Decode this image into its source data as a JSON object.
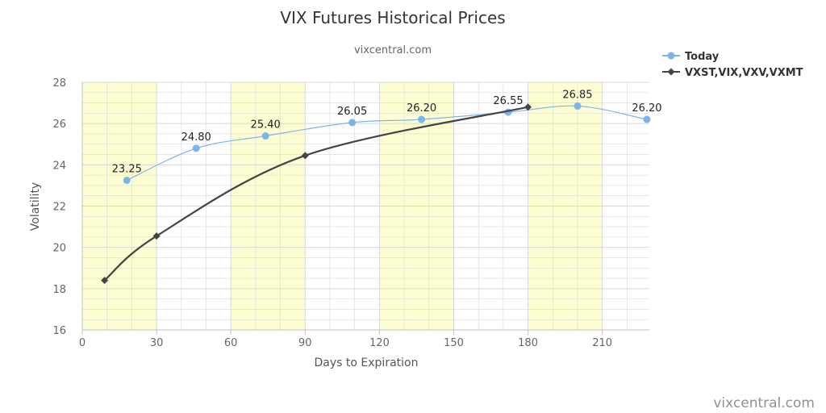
{
  "chart_data": {
    "type": "line",
    "title": "VIX Futures Historical Prices",
    "subtitle": "vixcentral.com",
    "xlabel": "Days to Expiration",
    "ylabel": "Volatility",
    "xlim": [
      0,
      229
    ],
    "ylim": [
      16,
      28
    ],
    "xticks": [
      0,
      30,
      60,
      90,
      120,
      150,
      180,
      210
    ],
    "yticks": [
      16,
      18,
      20,
      22,
      24,
      26,
      28
    ],
    "shaded_bands": [
      [
        0,
        30
      ],
      [
        60,
        90
      ],
      [
        120,
        150
      ],
      [
        180,
        210
      ]
    ],
    "grid": true,
    "legend_position": "top-right",
    "series": [
      {
        "name": "Today",
        "color": "#7cb5ec",
        "marker": "circle",
        "smooth": true,
        "show_labels": true,
        "points": [
          {
            "x": 18,
            "y": 23.25,
            "label": "23.25"
          },
          {
            "x": 46,
            "y": 24.8,
            "label": "24.80"
          },
          {
            "x": 74,
            "y": 25.4,
            "label": "25.40"
          },
          {
            "x": 109,
            "y": 26.05,
            "label": "26.05"
          },
          {
            "x": 137,
            "y": 26.2,
            "label": "26.20"
          },
          {
            "x": 172,
            "y": 26.55,
            "label": "26.55"
          },
          {
            "x": 200,
            "y": 26.85,
            "label": "26.85"
          },
          {
            "x": 228,
            "y": 26.2,
            "label": "26.20"
          }
        ]
      },
      {
        "name": "VXST,VIX,VXV,VXMT",
        "color": "#434348",
        "marker": "diamond",
        "smooth": true,
        "show_labels": false,
        "points": [
          {
            "x": 9,
            "y": 18.4
          },
          {
            "x": 30,
            "y": 20.55
          },
          {
            "x": 90,
            "y": 24.45
          },
          {
            "x": 180,
            "y": 26.8
          }
        ]
      }
    ]
  },
  "credit": "vixcentral.com",
  "colors": {
    "band": "#fdfdd2",
    "grid": "#d8d8d8",
    "axis": "#c0c0c0"
  }
}
